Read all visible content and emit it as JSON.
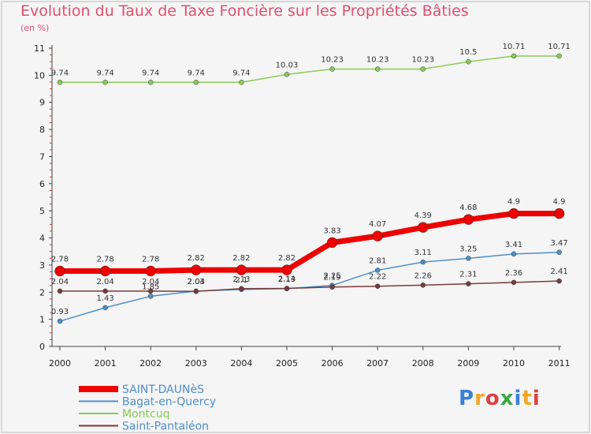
{
  "title": "Evolution du Taux de Taxe Foncière sur les Propriétés Bâties",
  "subtitle": "(en %)",
  "logo": {
    "text": "Proxiti",
    "colors": [
      "#3a7fd5",
      "#f5a623",
      "#e04040",
      "#39a845"
    ]
  },
  "chart_data": {
    "type": "line",
    "title": "Evolution du Taux de Taxe Foncière sur les Propriétés Bâties",
    "ylabel": "(en %)",
    "xlabel": "",
    "x": [
      "2000",
      "2001",
      "2002",
      "2003",
      "2004",
      "2005",
      "2006",
      "2007",
      "2008",
      "2009",
      "2010",
      "2011"
    ],
    "ylim": [
      0,
      11
    ],
    "yticks": [
      "0",
      "1",
      "2",
      "3",
      "4",
      "5",
      "6",
      "7",
      "8",
      "9",
      "10",
      "11"
    ],
    "grid": false,
    "legend_position": "bottom-left",
    "series": [
      {
        "name": "Montcuq",
        "color": "#88cc55",
        "values": [
          9.74,
          9.74,
          9.74,
          9.74,
          9.74,
          10.03,
          10.23,
          10.23,
          10.23,
          10.5,
          10.71,
          10.71
        ],
        "labels": [
          "9.74",
          "9.74",
          "9.74",
          "9.74",
          "9.74",
          "10.03",
          "10.23",
          "10.23",
          "10.23",
          "10.5",
          "10.71",
          "10.71"
        ]
      },
      {
        "name": "Bagat-en-Quercy",
        "color": "#4d8fc9",
        "values": [
          0.93,
          1.43,
          1.85,
          2.04,
          2.1,
          2.13,
          2.25,
          2.81,
          3.11,
          3.25,
          3.41,
          3.47
        ],
        "labels": [
          "0.93",
          "1.43",
          "1.85",
          "2.04",
          "2.1",
          "2.13",
          "2.25",
          "2.81",
          "3.11",
          "3.25",
          "3.41",
          "3.47"
        ]
      },
      {
        "name": "Saint-Pantaléon",
        "color": "#7a3a3a",
        "values": [
          2.04,
          2.04,
          2.04,
          2.03,
          2.13,
          2.14,
          2.19,
          2.22,
          2.26,
          2.31,
          2.36,
          2.41
        ],
        "labels": [
          "2.04",
          "2.04",
          "2.04",
          "2.03",
          "2.13",
          "2.14",
          "2.19",
          "2.22",
          "2.26",
          "2.31",
          "2.36",
          "2.41"
        ]
      },
      {
        "name": "SAINT-DAUNèS",
        "color": "#ee0000",
        "values": [
          2.78,
          2.78,
          2.78,
          2.82,
          2.82,
          2.82,
          3.83,
          4.07,
          4.39,
          4.68,
          4.9,
          4.9
        ],
        "labels": [
          "2.78",
          "2.78",
          "2.78",
          "2.82",
          "2.82",
          "2.82",
          "3.83",
          "4.07",
          "4.39",
          "4.68",
          "4.9",
          "4.9"
        ]
      }
    ],
    "legend_order": [
      "SAINT-DAUNèS",
      "Bagat-en-Quercy",
      "Montcuq",
      "Saint-Pantaléon"
    ]
  }
}
